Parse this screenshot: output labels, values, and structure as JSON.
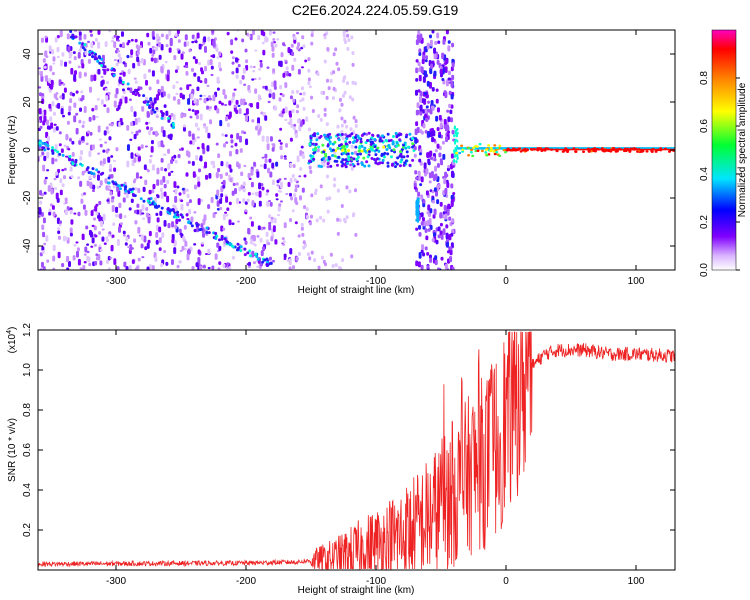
{
  "title": "C2E6.2024.224.05.59.G19",
  "chart_data": [
    {
      "type": "heatmap",
      "xlabel": "Height of straight line (km)",
      "ylabel": "Frequency (Hz)",
      "xlim": [
        -360,
        130
      ],
      "ylim": [
        -50,
        50
      ],
      "x_ticks": [
        -300,
        -200,
        -100,
        0,
        100
      ],
      "y_ticks": [
        -40,
        -20,
        0,
        20,
        40
      ],
      "colorbar": {
        "label": "Normalized spectral amplitude",
        "ticks": [
          "0.0",
          "0.2",
          "0.4",
          "0.6",
          "0.8"
        ],
        "range": [
          0,
          1
        ],
        "colormap": [
          "#ffffff",
          "#c080ff",
          "#7a00ff",
          "#0000ff",
          "#00e5ff",
          "#00ff40",
          "#ffff00",
          "#ff8000",
          "#ff0000",
          "#ff00c0"
        ]
      },
      "features": [
        {
          "name": "diagonal traces",
          "x": [
            -360,
            -180
          ],
          "y": [
            3,
            -48
          ]
        },
        {
          "name": "upper diagonal",
          "x": [
            -330,
            -260
          ],
          "y": [
            45,
            10
          ]
        },
        {
          "name": "noisy band",
          "x": [
            -150,
            -70
          ],
          "y": [
            0,
            0
          ]
        },
        {
          "name": "vertical stripe",
          "x": [
            -70,
            -40
          ],
          "y": [
            -50,
            50
          ]
        },
        {
          "name": "carrier line",
          "x": [
            -38,
            130
          ],
          "y": [
            0,
            0
          ]
        }
      ]
    },
    {
      "type": "line",
      "xlabel": "Height of straight line (km)",
      "ylabel": "SNR (10 * v/v)",
      "scale_label": "(x10",
      "scale_exp": "4",
      "scale_close": ")",
      "xlim": [
        -360,
        130
      ],
      "ylim": [
        0,
        1.2
      ],
      "x_ticks": [
        -300,
        -200,
        -100,
        0,
        100
      ],
      "y_ticks": [
        "0.2",
        "0.4",
        "0.6",
        "0.8",
        "1.0",
        "1.2"
      ],
      "color": "#ee2222",
      "envelope": {
        "x": [
          -360,
          -200,
          -160,
          -130,
          -110,
          -90,
          -70,
          -55,
          -45,
          -35,
          -25,
          -15,
          -5,
          0,
          10,
          20,
          30,
          40,
          60,
          80,
          100,
          130
        ],
        "y": [
          0.03,
          0.035,
          0.04,
          0.06,
          0.1,
          0.14,
          0.2,
          0.28,
          0.35,
          0.42,
          0.5,
          0.55,
          0.65,
          0.75,
          0.9,
          1.02,
          1.08,
          1.1,
          1.1,
          1.08,
          1.08,
          1.07
        ]
      }
    }
  ]
}
